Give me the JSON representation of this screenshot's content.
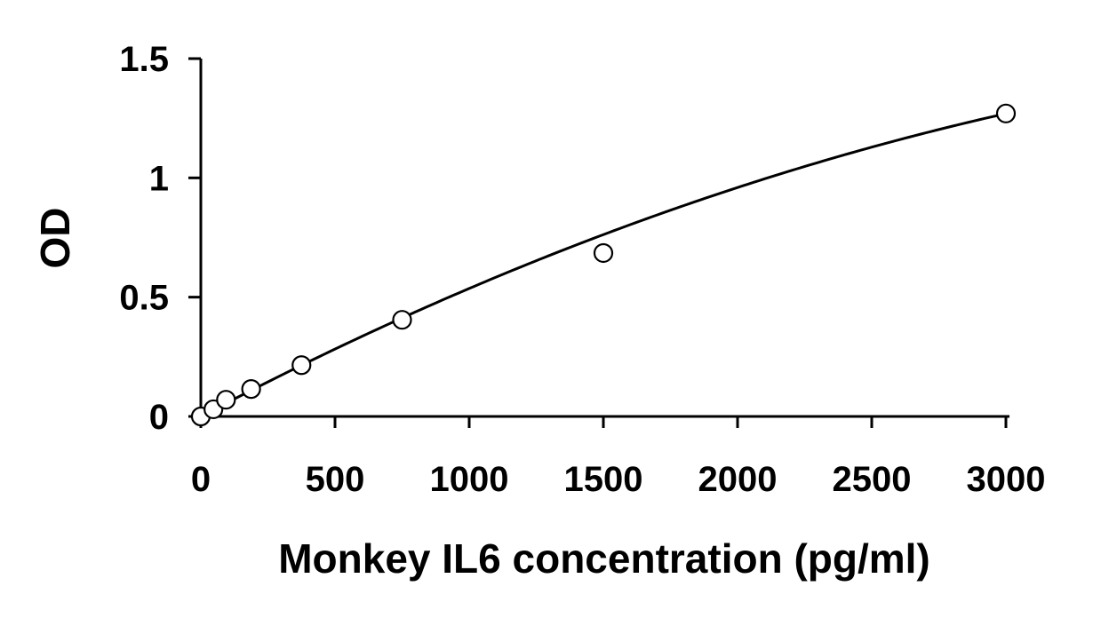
{
  "chart_data": {
    "type": "scatter",
    "title": "",
    "xlabel": "Monkey IL6 concentration (pg/ml)",
    "ylabel": "OD",
    "xlim": [
      0,
      3000
    ],
    "ylim": [
      0,
      1.5
    ],
    "xticks": [
      0,
      500,
      1000,
      1500,
      2000,
      2500,
      3000
    ],
    "xtick_labels": [
      "0",
      "500",
      "1000",
      "1500",
      "2000",
      "2500",
      "3000"
    ],
    "yticks": [
      0,
      0.5,
      1,
      1.5
    ],
    "ytick_labels": [
      "0",
      "0.5",
      "1",
      "1.5"
    ],
    "grid": false,
    "legend": "none",
    "series": [
      {
        "marker": "open-circle",
        "x": [
          0,
          46.875,
          93.75,
          187.5,
          375,
          750,
          1500,
          3000
        ],
        "y": [
          0.0,
          0.03,
          0.07,
          0.115,
          0.215,
          0.405,
          0.685,
          1.27
        ]
      }
    ],
    "fit_curve": {
      "type": "polynomial",
      "coefficients": [
        0.0,
        0.000593,
        -5.66e-08
      ]
    },
    "colors": {
      "axis": "#000000",
      "curve": "#000000",
      "marker_stroke": "#000000",
      "marker_fill": "#ffffff"
    }
  }
}
